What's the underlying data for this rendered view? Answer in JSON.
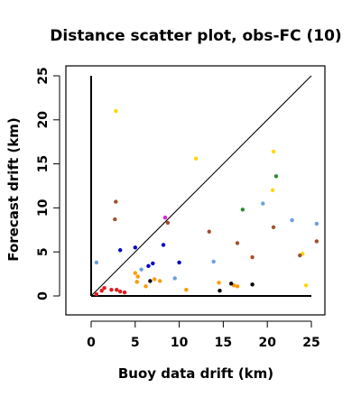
{
  "chart_data": {
    "type": "scatter",
    "title": "Distance scatter plot, obs-FC (10)",
    "xlabel": "Buoy data drift (km)",
    "ylabel": "Forecast drift (km)",
    "xlim": [
      -2.8,
      27.0
    ],
    "ylim": [
      -2.0,
      26.2
    ],
    "xticks": [
      "0",
      "5",
      "10",
      "15",
      "20",
      "25"
    ],
    "yticks": [
      "0",
      "5",
      "10",
      "15",
      "20",
      "25"
    ],
    "grid": false,
    "legend": "none",
    "reference_lines": [
      {
        "kind": "diagonal",
        "from": [
          0,
          0
        ],
        "to": [
          25,
          25
        ],
        "color": "#000000"
      },
      {
        "kind": "vertical",
        "from": [
          0,
          0
        ],
        "to": [
          0,
          25
        ],
        "color": "#000000"
      },
      {
        "kind": "horizontal",
        "from": [
          0,
          0
        ],
        "to": [
          25,
          0
        ],
        "color": "#000000"
      }
    ],
    "points": [
      {
        "x": 0.6,
        "y": 0.2,
        "color": "#e41a1c"
      },
      {
        "x": 1.2,
        "y": 0.6,
        "color": "#e41a1c"
      },
      {
        "x": 1.5,
        "y": 0.9,
        "color": "#e41a1c"
      },
      {
        "x": 2.3,
        "y": 0.7,
        "color": "#e41a1c"
      },
      {
        "x": 2.9,
        "y": 0.7,
        "color": "#e41a1c"
      },
      {
        "x": 3.3,
        "y": 0.5,
        "color": "#e41a1c"
      },
      {
        "x": 3.8,
        "y": 0.4,
        "color": "#e41a1c"
      },
      {
        "x": 0.6,
        "y": 3.8,
        "color": "#6a9fe0"
      },
      {
        "x": 3.3,
        "y": 5.2,
        "color": "#0000cc"
      },
      {
        "x": 5.0,
        "y": 5.5,
        "color": "#0000cc"
      },
      {
        "x": 5.7,
        "y": 3.0,
        "color": "#6a9fe0"
      },
      {
        "x": 6.5,
        "y": 3.4,
        "color": "#0000cc"
      },
      {
        "x": 7.0,
        "y": 3.7,
        "color": "#0000cc"
      },
      {
        "x": 8.2,
        "y": 5.8,
        "color": "#0000cc"
      },
      {
        "x": 9.5,
        "y": 2.0,
        "color": "#6a9fe0"
      },
      {
        "x": 10.0,
        "y": 3.8,
        "color": "#0000cc"
      },
      {
        "x": 5.0,
        "y": 2.6,
        "color": "#ff9900"
      },
      {
        "x": 5.3,
        "y": 2.2,
        "color": "#ff9900"
      },
      {
        "x": 5.2,
        "y": 1.6,
        "color": "#ff9900"
      },
      {
        "x": 6.2,
        "y": 1.1,
        "color": "#ff9900"
      },
      {
        "x": 7.2,
        "y": 1.9,
        "color": "#ff9900"
      },
      {
        "x": 7.8,
        "y": 1.7,
        "color": "#ff9900"
      },
      {
        "x": 10.8,
        "y": 0.7,
        "color": "#ff9900"
      },
      {
        "x": 14.5,
        "y": 1.5,
        "color": "#ff9900"
      },
      {
        "x": 16.2,
        "y": 1.2,
        "color": "#ff9900"
      },
      {
        "x": 16.6,
        "y": 1.1,
        "color": "#ff9900"
      },
      {
        "x": 6.7,
        "y": 1.7,
        "color": "#000000"
      },
      {
        "x": 14.6,
        "y": 0.6,
        "color": "#000000"
      },
      {
        "x": 15.9,
        "y": 1.4,
        "color": "#000000"
      },
      {
        "x": 18.3,
        "y": 1.3,
        "color": "#000000"
      },
      {
        "x": 2.8,
        "y": 21.0,
        "color": "#ffd700"
      },
      {
        "x": 11.9,
        "y": 15.6,
        "color": "#ffd700"
      },
      {
        "x": 20.7,
        "y": 16.4,
        "color": "#ffd700"
      },
      {
        "x": 20.6,
        "y": 12.0,
        "color": "#ffd700"
      },
      {
        "x": 24.0,
        "y": 4.8,
        "color": "#ffd700"
      },
      {
        "x": 24.4,
        "y": 1.2,
        "color": "#ffd700"
      },
      {
        "x": 2.8,
        "y": 10.7,
        "color": "#a0522d"
      },
      {
        "x": 2.7,
        "y": 8.7,
        "color": "#a0522d"
      },
      {
        "x": 8.7,
        "y": 8.3,
        "color": "#a0522d"
      },
      {
        "x": 13.4,
        "y": 7.3,
        "color": "#a0522d"
      },
      {
        "x": 16.6,
        "y": 6.0,
        "color": "#a0522d"
      },
      {
        "x": 18.3,
        "y": 4.4,
        "color": "#a0522d"
      },
      {
        "x": 20.7,
        "y": 7.8,
        "color": "#a0522d"
      },
      {
        "x": 23.7,
        "y": 4.6,
        "color": "#a0522d"
      },
      {
        "x": 25.6,
        "y": 6.2,
        "color": "#a0522d"
      },
      {
        "x": 8.4,
        "y": 8.9,
        "color": "#e020e0"
      },
      {
        "x": 13.9,
        "y": 3.9,
        "color": "#6a9fe0"
      },
      {
        "x": 19.5,
        "y": 10.5,
        "color": "#6a9fe0"
      },
      {
        "x": 22.8,
        "y": 8.6,
        "color": "#6a9fe0"
      },
      {
        "x": 25.6,
        "y": 8.2,
        "color": "#6a9fe0"
      },
      {
        "x": 17.2,
        "y": 9.8,
        "color": "#2e8b2e"
      },
      {
        "x": 21.0,
        "y": 13.6,
        "color": "#2e8b2e"
      }
    ]
  }
}
